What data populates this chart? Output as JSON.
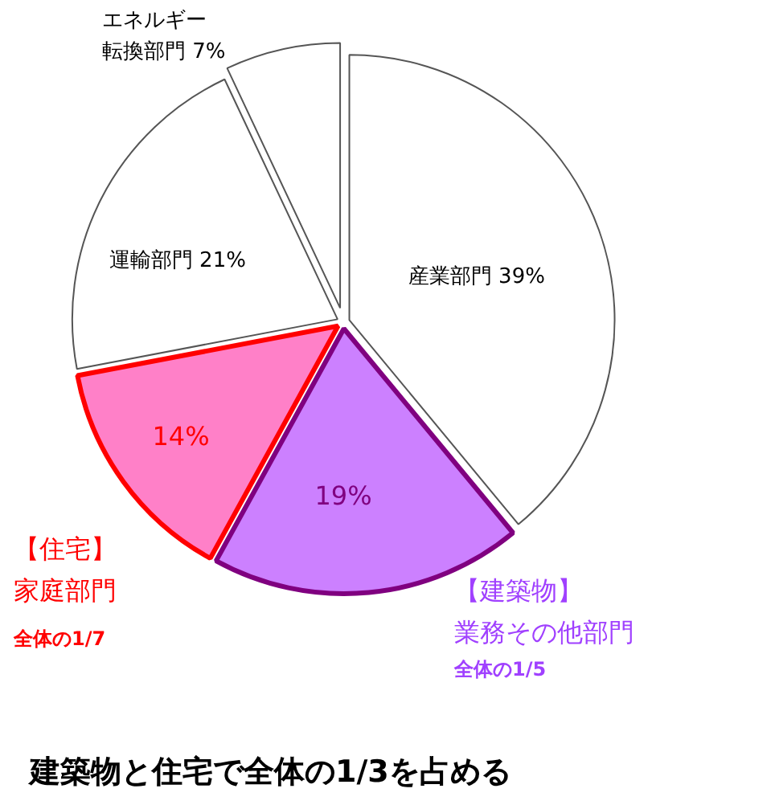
{
  "chart_data": {
    "type": "pie",
    "categories": [
      "産業部門",
      "【建築物】業務その他部門",
      "【住宅】家庭部門",
      "運輸部門",
      "エネルギー転換部門"
    ],
    "values": [
      39,
      19,
      14,
      21,
      7
    ],
    "colors": [
      "#ffffff",
      "#cc80ff",
      "#ff80c8",
      "#ffffff",
      "#ffffff"
    ],
    "value_labels": [
      "39%",
      "19%",
      "14%",
      "21%",
      "7%"
    ],
    "annotations": [
      "全体の1/5",
      "全体の1/7",
      "建築物と住宅で全体の1/3を占める"
    ]
  }
}
